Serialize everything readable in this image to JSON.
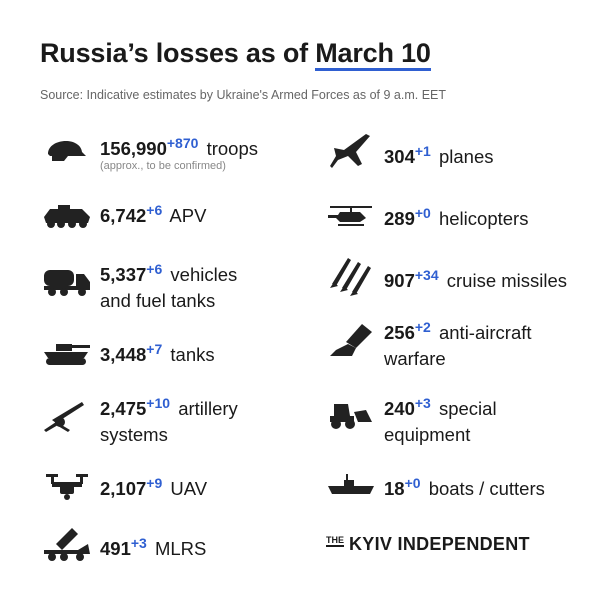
{
  "header": {
    "title_prefix": "Russia’s losses as of",
    "title_date": "March 10",
    "source": "Source: Indicative estimates by Ukraine's Armed Forces as of 9 a.m. EET"
  },
  "left": [
    {
      "icon": "helmet-icon",
      "value": "156,990",
      "delta": "+870",
      "label": "troops",
      "note": "(approx., to be confirmed)"
    },
    {
      "icon": "apv-icon",
      "value": "6,742",
      "delta": "+6",
      "label": "APV"
    },
    {
      "icon": "fuel-truck-icon",
      "value": "5,337",
      "delta": "+6",
      "label": "vehicles",
      "label2": "and fuel tanks"
    },
    {
      "icon": "tank-icon",
      "value": "3,448",
      "delta": "+7",
      "label": "tanks"
    },
    {
      "icon": "artillery-icon",
      "value": "2,475",
      "delta": "+10",
      "label": "artillery",
      "label2": "systems"
    },
    {
      "icon": "drone-icon",
      "value": "2,107",
      "delta": "+9",
      "label": "UAV"
    },
    {
      "icon": "mlrs-icon",
      "value": "491",
      "delta": "+3",
      "label": "MLRS"
    }
  ],
  "right": [
    {
      "icon": "plane-icon",
      "value": "304",
      "delta": "+1",
      "label": "planes"
    },
    {
      "icon": "helicopter-icon",
      "value": "289",
      "delta": "+0",
      "label": "helicopters"
    },
    {
      "icon": "missile-icon",
      "value": "907",
      "delta": "+34",
      "label": "cruise missiles"
    },
    {
      "icon": "anti-aircraft-icon",
      "value": "256",
      "delta": "+2",
      "label": "anti-aircraft",
      "label2": "warfare"
    },
    {
      "icon": "special-equipment-icon",
      "value": "240",
      "delta": "+3",
      "label": "special",
      "label2": "equipment"
    },
    {
      "icon": "boat-icon",
      "value": "18",
      "delta": "+0",
      "label": "boats / cutters"
    }
  ],
  "logo": {
    "the": "THE",
    "name": "KYIV INDEPENDENT"
  }
}
